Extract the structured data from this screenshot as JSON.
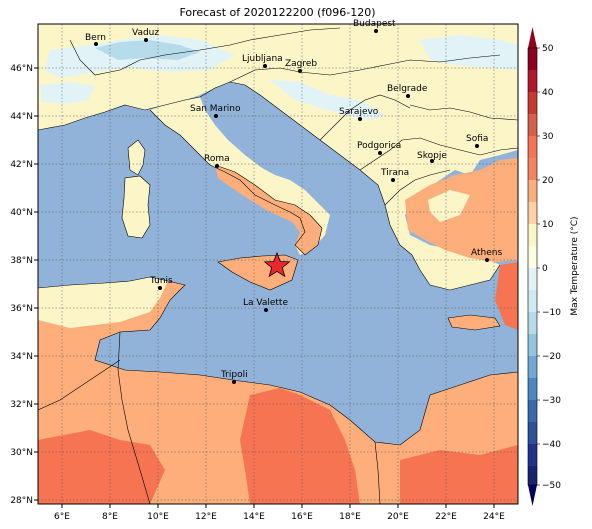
{
  "title": "Forecast of 2020122200 (f096-120)",
  "lon_ticks": [
    "6°E",
    "8°E",
    "10°E",
    "12°E",
    "14°E",
    "16°E",
    "18°E",
    "20°E",
    "22°E",
    "24°E"
  ],
  "lat_ticks": [
    "46°N",
    "44°N",
    "42°N",
    "40°N",
    "38°N",
    "36°N",
    "34°N",
    "32°N",
    "30°N",
    "28°N"
  ],
  "cities": [
    {
      "name": "Bern"
    },
    {
      "name": "Vaduz"
    },
    {
      "name": "Budapest"
    },
    {
      "name": "Ljubljana"
    },
    {
      "name": "Zagreb"
    },
    {
      "name": "Belgrade"
    },
    {
      "name": "San Marino"
    },
    {
      "name": "Sarajevo"
    },
    {
      "name": "Podgorica"
    },
    {
      "name": "Sofia"
    },
    {
      "name": "Skopje"
    },
    {
      "name": "Roma"
    },
    {
      "name": "Tirana"
    },
    {
      "name": "Athens"
    },
    {
      "name": "Tunis"
    },
    {
      "name": "La Valette"
    },
    {
      "name": "Tripoli"
    }
  ],
  "colorbar": {
    "label": "Max Temperature (°C)",
    "ticks": [
      "50",
      "40",
      "30",
      "20",
      "10",
      "0",
      "−10",
      "−20",
      "−30",
      "−40",
      "−50"
    ]
  },
  "colors": {
    "sea": "#91b3d9",
    "land_cool": "#fbf5c8",
    "land_warm": "#fdae7a",
    "land_hot": "#f67452",
    "snow": "#e2f3f8",
    "cold": "#b6dbe9"
  }
}
